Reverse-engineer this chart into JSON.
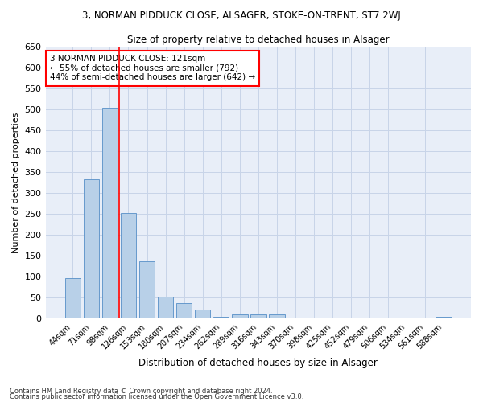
{
  "title1": "3, NORMAN PIDDUCK CLOSE, ALSAGER, STOKE-ON-TRENT, ST7 2WJ",
  "title2": "Size of property relative to detached houses in Alsager",
  "xlabel": "Distribution of detached houses by size in Alsager",
  "ylabel": "Number of detached properties",
  "categories": [
    "44sqm",
    "71sqm",
    "98sqm",
    "126sqm",
    "153sqm",
    "180sqm",
    "207sqm",
    "234sqm",
    "262sqm",
    "289sqm",
    "316sqm",
    "343sqm",
    "370sqm",
    "398sqm",
    "425sqm",
    "452sqm",
    "479sqm",
    "506sqm",
    "534sqm",
    "561sqm",
    "588sqm"
  ],
  "values": [
    97,
    333,
    505,
    253,
    137,
    53,
    37,
    21,
    5,
    10,
    10,
    10,
    0,
    0,
    0,
    0,
    0,
    0,
    0,
    0,
    5
  ],
  "bar_color": "#b8d0e8",
  "bar_edge_color": "#6699cc",
  "red_line_index": 3,
  "annotation_text": "3 NORMAN PIDDUCK CLOSE: 121sqm\n← 55% of detached houses are smaller (792)\n44% of semi-detached houses are larger (642) →",
  "annotation_box_color": "white",
  "annotation_box_edge": "red",
  "grid_color": "#c8d4e8",
  "background_color": "#e8eef8",
  "ylim": [
    0,
    650
  ],
  "yticks": [
    0,
    50,
    100,
    150,
    200,
    250,
    300,
    350,
    400,
    450,
    500,
    550,
    600,
    650
  ],
  "footer1": "Contains HM Land Registry data © Crown copyright and database right 2024.",
  "footer2": "Contains public sector information licensed under the Open Government Licence v3.0."
}
